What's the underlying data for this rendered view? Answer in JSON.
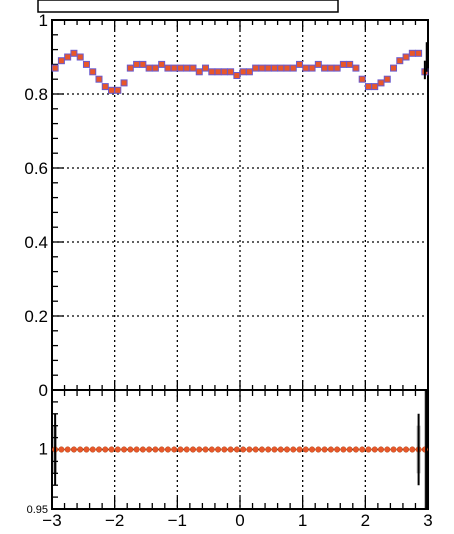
{
  "chart_data": [
    {
      "type": "scatter",
      "title": "",
      "xlabel": "",
      "ylabel": "",
      "xlim": [
        -3,
        3
      ],
      "ylim": [
        0,
        1
      ],
      "grid": true,
      "y_ticks": [
        "0",
        "0.2",
        "0.4",
        "0.6",
        "0.8",
        "1"
      ],
      "y_tick_values": [
        0,
        0.2,
        0.4,
        0.6,
        0.8,
        1
      ],
      "series": [
        {
          "marker_color": "#e8572a",
          "marker_edge_color": "#6a5acd",
          "x": [
            -2.95,
            -2.85,
            -2.75,
            -2.65,
            -2.55,
            -2.45,
            -2.35,
            -2.25,
            -2.15,
            -2.05,
            -1.95,
            -1.85,
            -1.75,
            -1.65,
            -1.55,
            -1.45,
            -1.35,
            -1.25,
            -1.15,
            -1.05,
            -0.95,
            -0.85,
            -0.75,
            -0.65,
            -0.55,
            -0.45,
            -0.35,
            -0.25,
            -0.15,
            -0.05,
            0.05,
            0.15,
            0.25,
            0.35,
            0.45,
            0.55,
            0.65,
            0.75,
            0.85,
            0.95,
            1.05,
            1.15,
            1.25,
            1.35,
            1.45,
            1.55,
            1.65,
            1.75,
            1.85,
            1.95,
            2.05,
            2.15,
            2.25,
            2.35,
            2.45,
            2.55,
            2.65,
            2.75,
            2.85,
            2.95
          ],
          "y": [
            0.87,
            0.89,
            0.9,
            0.91,
            0.9,
            0.88,
            0.86,
            0.84,
            0.82,
            0.81,
            0.81,
            0.83,
            0.87,
            0.88,
            0.88,
            0.87,
            0.87,
            0.88,
            0.87,
            0.87,
            0.87,
            0.87,
            0.87,
            0.86,
            0.87,
            0.86,
            0.86,
            0.86,
            0.86,
            0.85,
            0.86,
            0.86,
            0.87,
            0.87,
            0.87,
            0.87,
            0.87,
            0.87,
            0.87,
            0.88,
            0.87,
            0.87,
            0.88,
            0.87,
            0.87,
            0.87,
            0.88,
            0.88,
            0.87,
            0.84,
            0.82,
            0.82,
            0.83,
            0.84,
            0.87,
            0.89,
            0.9,
            0.91,
            0.91,
            0.86
          ]
        }
      ]
    },
    {
      "type": "scatter",
      "title": "",
      "xlabel": "",
      "ylabel": "",
      "xlim": [
        -3,
        3
      ],
      "ylim": [
        0.95,
        1.05
      ],
      "grid": true,
      "x_ticks": [
        "−3",
        "−2",
        "−1",
        "0",
        "1",
        "2",
        "3"
      ],
      "x_tick_values": [
        -3,
        -2,
        -1,
        0,
        1,
        2,
        3
      ],
      "y_ticks": [
        "0.95",
        "1"
      ],
      "y_tick_values": [
        0.95,
        1
      ],
      "series": [
        {
          "marker_color": "#e8572a",
          "x": [
            -2.95,
            -2.85,
            -2.75,
            -2.65,
            -2.55,
            -2.45,
            -2.35,
            -2.25,
            -2.15,
            -2.05,
            -1.95,
            -1.85,
            -1.75,
            -1.65,
            -1.55,
            -1.45,
            -1.35,
            -1.25,
            -1.15,
            -1.05,
            -0.95,
            -0.85,
            -0.75,
            -0.65,
            -0.55,
            -0.45,
            -0.35,
            -0.25,
            -0.15,
            -0.05,
            0.05,
            0.15,
            0.25,
            0.35,
            0.45,
            0.55,
            0.65,
            0.75,
            0.85,
            0.95,
            1.05,
            1.15,
            1.25,
            1.35,
            1.45,
            1.55,
            1.65,
            1.75,
            1.85,
            1.95,
            2.05,
            2.15,
            2.25,
            2.35,
            2.45,
            2.55,
            2.65,
            2.75,
            2.85,
            2.95
          ],
          "y": [
            1,
            1,
            1,
            1,
            1,
            1,
            1,
            1,
            1,
            1,
            1,
            1,
            1,
            1,
            1,
            1,
            1,
            1,
            1,
            1,
            1,
            1,
            1,
            1,
            1,
            1,
            1,
            1,
            1,
            1,
            1,
            1,
            1,
            1,
            1,
            1,
            1,
            1,
            1,
            1,
            1,
            1,
            1,
            1,
            1,
            1,
            1,
            1,
            1,
            1,
            1,
            1,
            1,
            1,
            1,
            1,
            1,
            1,
            1,
            1
          ]
        }
      ]
    }
  ]
}
